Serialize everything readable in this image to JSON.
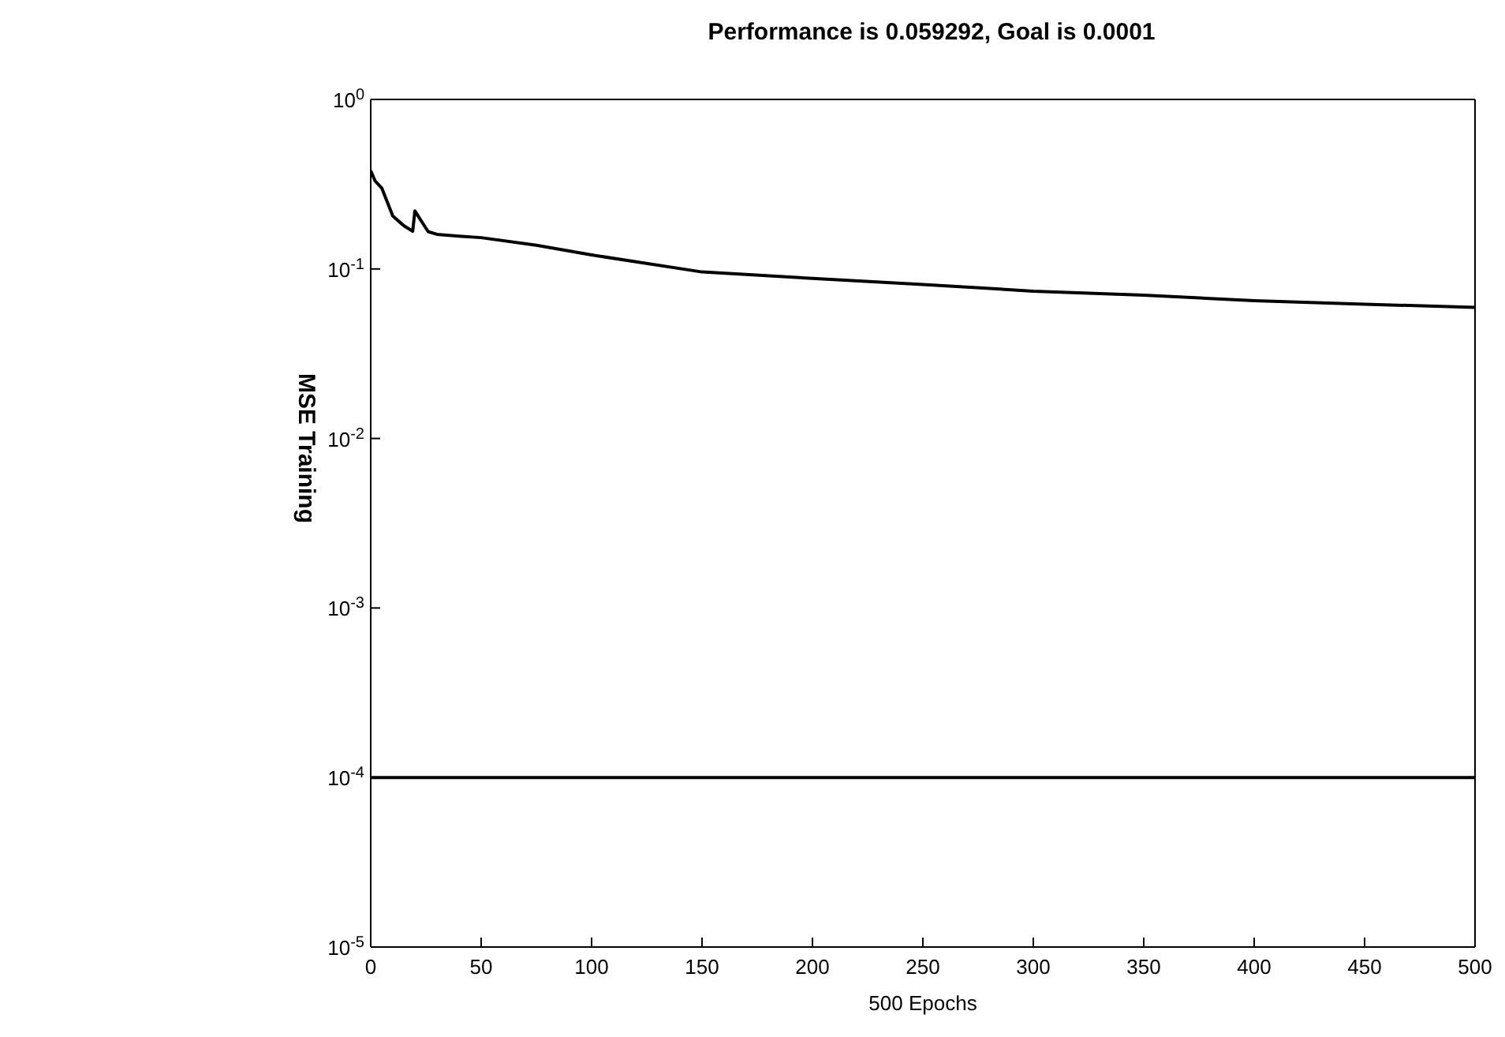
{
  "chart_data": {
    "type": "line",
    "title": "Performance is 0.059292, Goal is 0.0001",
    "xlabel": "500 Epochs",
    "ylabel": "MSE Training",
    "log": "y",
    "x": [
      0,
      2,
      5,
      10,
      15,
      19,
      20,
      22,
      26,
      30,
      40,
      50,
      75,
      100,
      150,
      200,
      250,
      300,
      350,
      400,
      450,
      500
    ],
    "series": [
      {
        "color": "#000000",
        "values": [
          0.38,
          0.33,
          0.3,
          0.205,
          0.18,
          0.167,
          0.22,
          0.2,
          0.166,
          0.16,
          0.156,
          0.153,
          0.138,
          0.121,
          0.096,
          0.088,
          0.081,
          0.074,
          0.07,
          0.065,
          0.062,
          0.059292
        ]
      }
    ],
    "xlim": [
      0,
      500
    ],
    "xticks": [
      0,
      50,
      100,
      150,
      200,
      250,
      300,
      350,
      400,
      450,
      500
    ],
    "ylim": [
      1e-05,
      1
    ],
    "yticks": [
      {
        "value": 1,
        "label": "10$^{0}$"
      },
      {
        "value": 0.1,
        "label": "10$^{-1}$"
      },
      {
        "value": 0.01,
        "label": "10$^{-2}$"
      },
      {
        "value": 0.001,
        "label": "10$^{-3}$"
      },
      {
        "value": 0.0001,
        "label": "10$^{-4}$"
      },
      {
        "value": 1e-05,
        "label": "10$^{-5}$"
      }
    ],
    "ref_lines": [
      {
        "axis": "y",
        "value": 0.0001,
        "color": "#000000"
      }
    ],
    "grid": false,
    "legend": false,
    "marker": "none",
    "line_style": "solid"
  }
}
